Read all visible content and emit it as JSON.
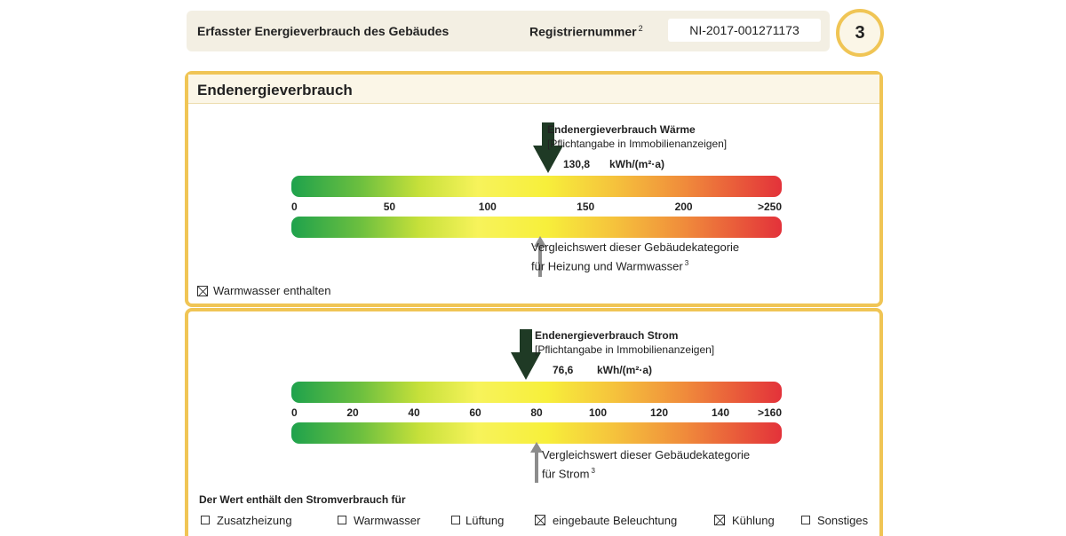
{
  "header": {
    "title": "Erfasster Energieverbrauch des Gebäudes",
    "registration_label": "Registriernummer",
    "registration_footnote": "2",
    "registration_number": "NI-2017-001271173",
    "page_number": "3"
  },
  "section_heat": {
    "heading": "Endenergieverbrauch",
    "indicator": {
      "title": "Endenergieverbrauch Wärme",
      "subtitle": "[Pflichtangabe in Immobilienanzeigen]",
      "value_text": "130,8",
      "unit": "kWh/(m²·a)",
      "value": 130.8
    },
    "scale": {
      "min": 0,
      "max": 250,
      "ticks": [
        {
          "value": 0,
          "label": "0"
        },
        {
          "value": 50,
          "label": "50"
        },
        {
          "value": 100,
          "label": "100"
        },
        {
          "value": 150,
          "label": "150"
        },
        {
          "value": 200,
          "label": "200"
        },
        {
          "value": 250,
          "label": ">250"
        }
      ]
    },
    "comparison": {
      "line1": "Vergleichswert dieser Gebäudekategorie",
      "line2": "für Heizung und Warmwasser",
      "footnote": "3",
      "value": 127
    },
    "hot_water_checkbox": {
      "label": "Warmwasser enthalten",
      "checked": true
    }
  },
  "section_power": {
    "indicator": {
      "title": "Endenergieverbrauch Strom",
      "subtitle": "[Pflichtangabe in Immobilienanzeigen]",
      "value_text": "76,6",
      "unit": "kWh/(m²·a)",
      "value": 76.6
    },
    "scale": {
      "min": 0,
      "max": 160,
      "ticks": [
        {
          "value": 0,
          "label": "0"
        },
        {
          "value": 20,
          "label": "20"
        },
        {
          "value": 40,
          "label": "40"
        },
        {
          "value": 60,
          "label": "60"
        },
        {
          "value": 80,
          "label": "80"
        },
        {
          "value": 100,
          "label": "100"
        },
        {
          "value": 120,
          "label": "120"
        },
        {
          "value": 140,
          "label": "140"
        },
        {
          "value": 160,
          "label": ">160"
        }
      ]
    },
    "comparison": {
      "line1": "Vergleichswert dieser Gebäudekategorie",
      "line2": "für Strom",
      "footnote": "3",
      "value": 80
    },
    "includes_heading": "Der Wert enthält den Stromverbrauch für",
    "includes": [
      {
        "label": "Zusatzheizung",
        "checked": false
      },
      {
        "label": "Warmwasser",
        "checked": false
      },
      {
        "label": "Lüftung",
        "checked": false
      },
      {
        "label": "eingebaute Beleuchtung",
        "checked": true
      },
      {
        "label": "Kühlung",
        "checked": true
      },
      {
        "label": "Sonstiges",
        "checked": false
      }
    ]
  },
  "colors": {
    "frame": "#f0c555",
    "scale_green": "#1ea24c",
    "scale_yellow": "#f7f35b",
    "scale_red": "#e3323a",
    "arrow_value": "#1f3a25",
    "arrow_compare": "#8c8c8c"
  }
}
